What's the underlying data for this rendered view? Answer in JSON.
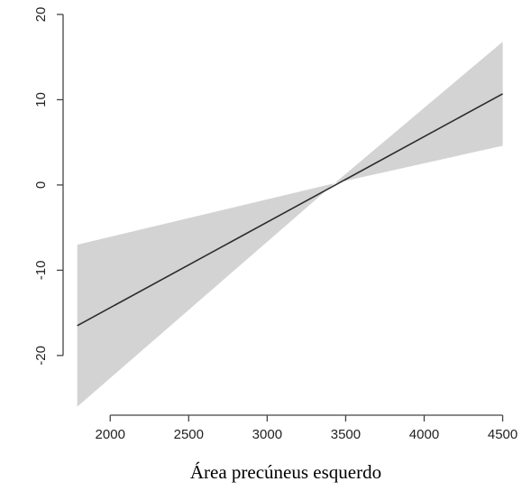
{
  "chart_data": {
    "type": "line",
    "title": "",
    "xlabel": "Área precúneus esquerdo",
    "ylabel": "",
    "xlim": [
      1700,
      4560
    ],
    "ylim": [
      -27,
      20
    ],
    "x_ticks": [
      2000,
      2500,
      3000,
      3500,
      4000,
      4500
    ],
    "y_ticks": [
      -20,
      -10,
      0,
      10,
      20
    ],
    "x_tick_labels": [
      "2000",
      "2500",
      "3000",
      "3500",
      "4000",
      "4500"
    ],
    "y_tick_labels": [
      "-20",
      "-10",
      "0",
      "10",
      "20"
    ],
    "grid": false,
    "legend": "none",
    "series": [
      {
        "x": [
          1790,
          4500
        ],
        "y": [
          -16.5,
          10.7
        ],
        "color": "#2b2b2b"
      }
    ],
    "confidence_band": {
      "x": [
        1790,
        3430,
        4500
      ],
      "lower": [
        -26.0,
        0.2,
        4.6
      ],
      "upper": [
        -7.0,
        0.2,
        16.8
      ],
      "color": "#d3d3d3"
    }
  }
}
